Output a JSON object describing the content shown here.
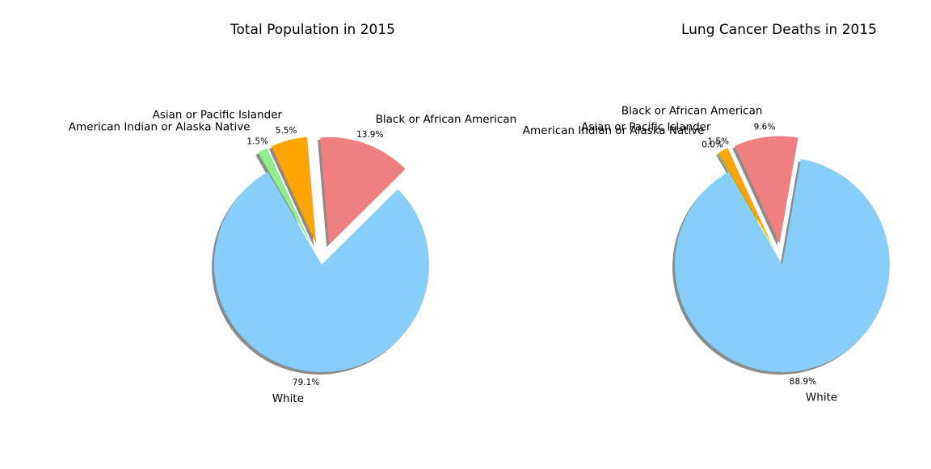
{
  "chart_data": [
    {
      "type": "pie",
      "title": "Total Population in 2015",
      "slices": [
        {
          "label": "White",
          "value": 79.1,
          "pct_label": "79.1%",
          "color": "#87CEFA",
          "explode": false
        },
        {
          "label": "Black or African American",
          "value": 13.9,
          "pct_label": "13.9%",
          "color": "#F08080",
          "explode": true
        },
        {
          "label": "Asian or Pacific Islander",
          "value": 5.5,
          "pct_label": "5.5%",
          "color": "#FFA500",
          "explode": true
        },
        {
          "label": "American Indian or Alaska Native",
          "value": 1.5,
          "pct_label": "1.5%",
          "color": "#90EE90",
          "explode": true
        }
      ],
      "start_angle_deg": 120,
      "shadow": true
    },
    {
      "type": "pie",
      "title": "Lung Cancer Deaths in 2015",
      "slices": [
        {
          "label": "White",
          "value": 88.9,
          "pct_label": "88.9%",
          "color": "#87CEFA",
          "explode": false
        },
        {
          "label": "Black or African American",
          "value": 9.6,
          "pct_label": "9.6%",
          "color": "#F08080",
          "explode": true
        },
        {
          "label": "Asian or Pacific Islander",
          "value": 1.5,
          "pct_label": "1.5%",
          "color": "#FFA500",
          "explode": true
        },
        {
          "label": "American Indian or Alaska Native",
          "value": 0.0,
          "pct_label": "0.0%",
          "color": "#90EE90",
          "explode": true
        }
      ],
      "start_angle_deg": 120,
      "shadow": true
    }
  ]
}
